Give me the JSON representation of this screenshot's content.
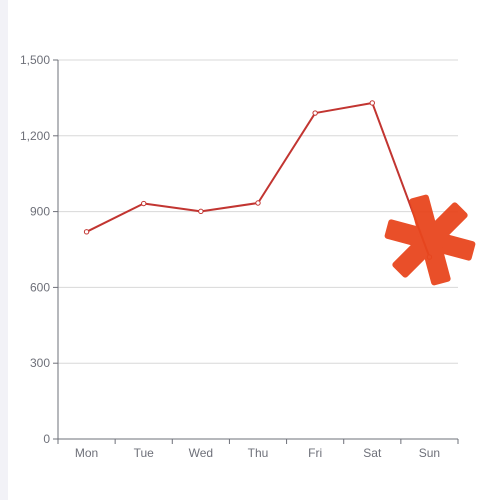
{
  "chart_data": {
    "type": "line",
    "categories": [
      "Mon",
      "Tue",
      "Wed",
      "Thu",
      "Fri",
      "Sat",
      "Sun"
    ],
    "series": [
      {
        "values": [
          820,
          932,
          901,
          934,
          1290,
          1330,
          720
        ]
      }
    ],
    "ylim": [
      0,
      1500
    ],
    "y_ticks": [
      0,
      300,
      600,
      900,
      1200,
      1500
    ],
    "y_tick_labels": [
      "0",
      "300",
      "600",
      "900",
      "1,200",
      "1,500"
    ],
    "grid": true,
    "line_color": "#c23531",
    "marker": "hollow-circle"
  },
  "overlay": {
    "icon": "asterisk-icon",
    "color": "#e8461e"
  }
}
